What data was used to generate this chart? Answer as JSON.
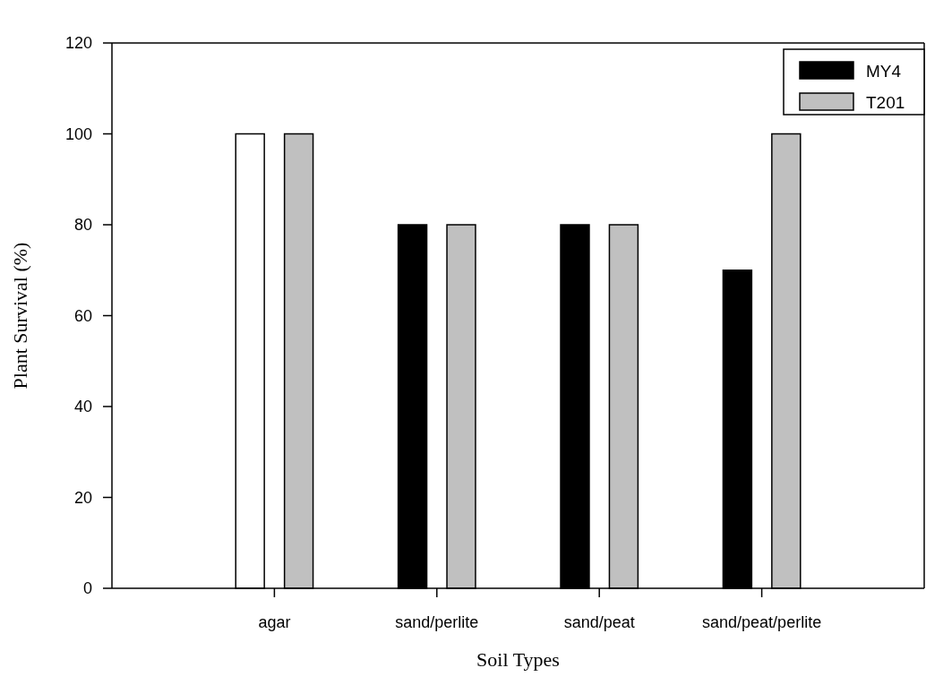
{
  "chart_data": {
    "type": "bar",
    "xlabel": "Soil Types",
    "ylabel": "Plant Survival (%)",
    "categories": [
      "agar",
      "sand/perlite",
      "sand/peat",
      "sand/peat/perlite"
    ],
    "series": [
      {
        "name": "MY4",
        "color": "#000000",
        "colors": [
          "#ffffff",
          "#000000",
          "#000000",
          "#000000"
        ],
        "values": [
          100,
          80,
          80,
          70
        ]
      },
      {
        "name": "T201",
        "color": "#c0c0c0",
        "values": [
          100,
          80,
          80,
          100
        ]
      }
    ],
    "ylim": [
      0,
      120
    ],
    "yticks": [
      0,
      20,
      40,
      60,
      80,
      100,
      120
    ],
    "legend": "top right",
    "grid": false
  }
}
